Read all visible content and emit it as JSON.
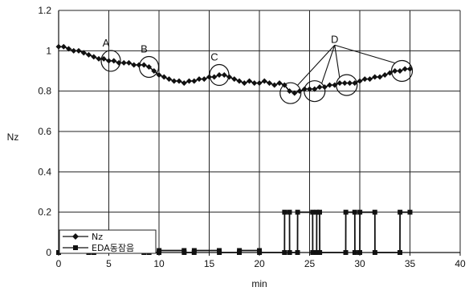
{
  "chart_data": {
    "type": "line",
    "title": "",
    "xlabel": "min",
    "ylabel": "Nz",
    "xlim": [
      0,
      40
    ],
    "ylim": [
      0,
      1.2
    ],
    "x_ticks": [
      "0",
      "5",
      "10",
      "15",
      "20",
      "25",
      "30",
      "35",
      "40"
    ],
    "y_ticks": [
      "0",
      "0.2",
      "0.4",
      "0.6",
      "0.8",
      "1",
      "1.2"
    ],
    "grid": true,
    "legend_position": "bottom-left",
    "series": [
      {
        "name": "Nz",
        "marker": "diamond",
        "color": "#111111",
        "x": [
          0,
          0.5,
          1,
          1.5,
          2,
          2.5,
          3,
          3.5,
          4,
          4.5,
          5,
          5.5,
          6,
          6.5,
          7,
          7.5,
          8,
          8.5,
          9,
          9.5,
          10,
          10.5,
          11,
          11.5,
          12,
          12.5,
          13,
          13.5,
          14,
          14.5,
          15,
          15.5,
          16,
          16.5,
          17,
          17.5,
          18,
          18.5,
          19,
          19.5,
          20,
          20.5,
          21,
          21.5,
          22,
          22.5,
          23,
          23.5,
          24,
          24.5,
          25,
          25.5,
          26,
          26.5,
          27,
          27.5,
          28,
          28.5,
          29,
          29.5,
          30,
          30.5,
          31,
          31.5,
          32,
          32.5,
          33,
          33.5,
          34,
          34.5,
          35
        ],
        "y": [
          1.02,
          1.02,
          1.01,
          1.0,
          1.0,
          0.99,
          0.98,
          0.97,
          0.96,
          0.96,
          0.95,
          0.95,
          0.94,
          0.94,
          0.94,
          0.93,
          0.93,
          0.93,
          0.92,
          0.9,
          0.88,
          0.87,
          0.86,
          0.85,
          0.85,
          0.84,
          0.85,
          0.85,
          0.86,
          0.86,
          0.87,
          0.87,
          0.88,
          0.88,
          0.87,
          0.86,
          0.85,
          0.84,
          0.85,
          0.84,
          0.84,
          0.85,
          0.84,
          0.83,
          0.84,
          0.83,
          0.8,
          0.79,
          0.8,
          0.81,
          0.81,
          0.81,
          0.82,
          0.82,
          0.83,
          0.83,
          0.84,
          0.84,
          0.84,
          0.84,
          0.85,
          0.86,
          0.86,
          0.87,
          0.87,
          0.88,
          0.89,
          0.9,
          0.9,
          0.91,
          0.91
        ]
      },
      {
        "name": "EDA동잠음",
        "marker": "square",
        "color": "#111111",
        "x": [
          0,
          3,
          3.01,
          3.5,
          3.51,
          8.5,
          8.51,
          9,
          9.01,
          10,
          10.01,
          12.5,
          12.51,
          13.5,
          13.51,
          16,
          16.01,
          18,
          18.01,
          20,
          20.01,
          22.5,
          22.51,
          23,
          23.01,
          23.8,
          23.81,
          25.3,
          25.31,
          25.7,
          25.71,
          26,
          26.01,
          28.6,
          28.61,
          29.5,
          29.51,
          30,
          30.01,
          31.5,
          31.51,
          34,
          34.01,
          35
        ],
        "y": [
          0,
          0,
          0.01,
          0.01,
          0,
          0,
          0.01,
          0.01,
          0,
          0,
          0.01,
          0.01,
          0,
          0,
          0.01,
          0.01,
          0,
          0,
          0.01,
          0.01,
          0,
          0,
          0.2,
          0.2,
          0,
          0,
          0.2,
          0.2,
          0,
          0,
          0.2,
          0.2,
          0,
          0,
          0.2,
          0.2,
          0,
          0,
          0.2,
          0.2,
          0,
          0,
          0.2,
          0.2
        ]
      }
    ],
    "annotations": [
      {
        "label": "A",
        "x": 5.2,
        "y": 0.95
      },
      {
        "label": "B",
        "x": 9.0,
        "y": 0.92
      },
      {
        "label": "C",
        "x": 16.0,
        "y": 0.88
      },
      {
        "label": "D",
        "x": 27.5,
        "y": 1.04,
        "targets": [
          [
            23.1,
            0.79
          ],
          [
            25.5,
            0.8
          ],
          [
            28.7,
            0.83
          ],
          [
            34.2,
            0.9
          ]
        ]
      }
    ]
  }
}
